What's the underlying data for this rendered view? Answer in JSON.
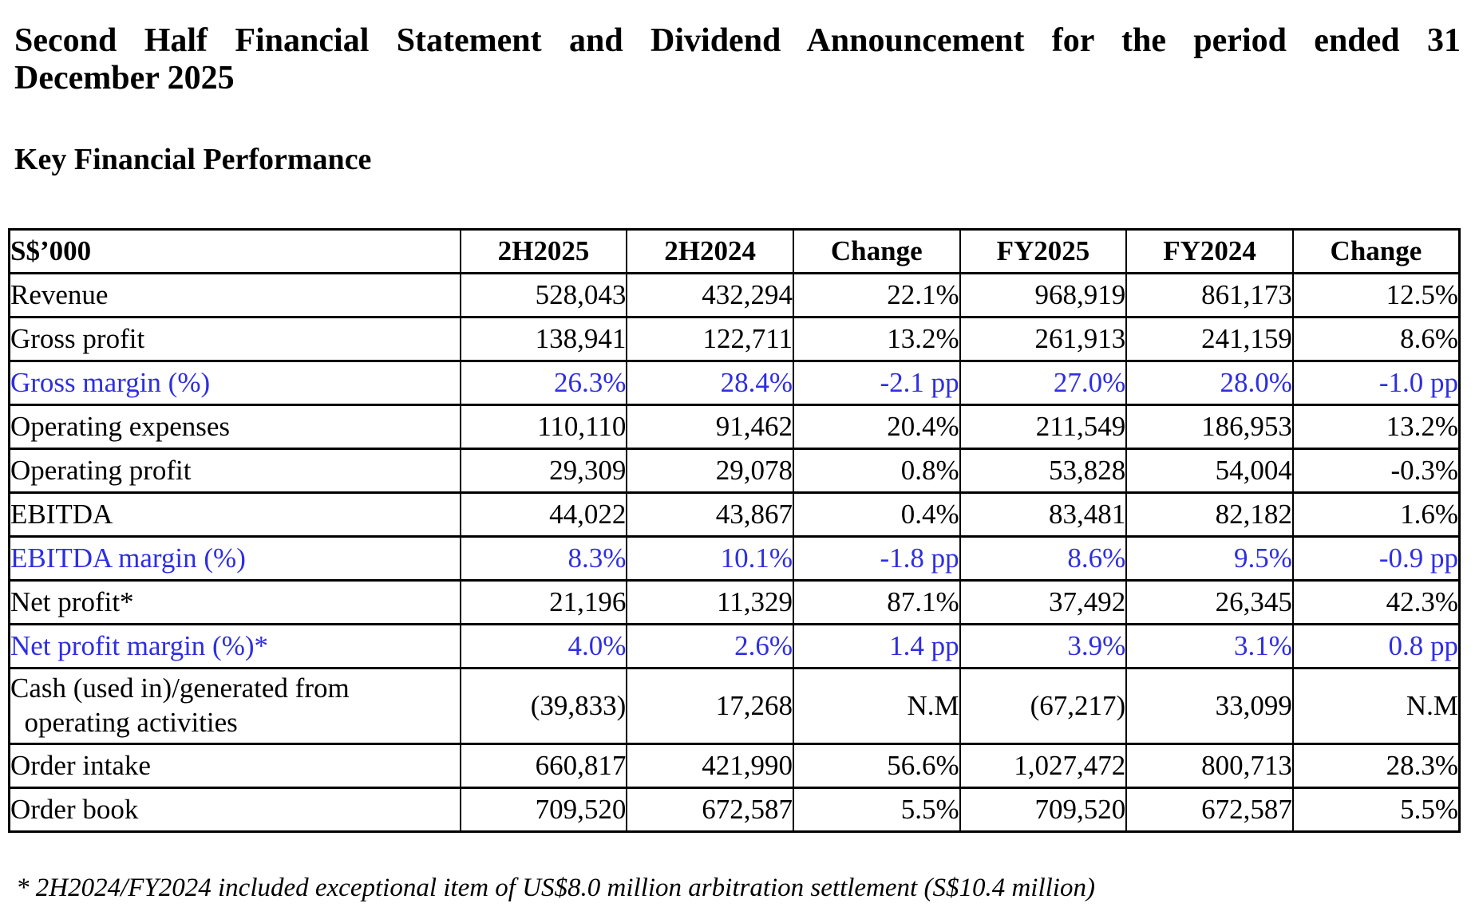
{
  "document": {
    "title_line1": "Second Half Financial Statement and Dividend Announcement for the period ended 31",
    "title_line2": "December 2025",
    "section_heading": "Key Financial Performance",
    "footnote": "* 2H2024/FY2024 included exceptional item of US$8.0 million arbitration settlement (S$10.4 million)"
  },
  "colors": {
    "text": "#000000",
    "highlight_blue": "#2e2ee2",
    "border": "#000000",
    "background": "#ffffff"
  },
  "table": {
    "unit_header": "S$’000",
    "columns": [
      "2H2025",
      "2H2024",
      "Change",
      "FY2025",
      "FY2024",
      "Change"
    ],
    "rows": [
      {
        "label": "Revenue",
        "highlight": false,
        "tall": false,
        "values": [
          "528,043",
          "432,294",
          "22.1%",
          "968,919",
          "861,173",
          "12.5%"
        ]
      },
      {
        "label": "Gross profit",
        "highlight": false,
        "tall": false,
        "values": [
          "138,941",
          "122,711",
          "13.2%",
          "261,913",
          "241,159",
          "8.6%"
        ]
      },
      {
        "label": "Gross margin (%)",
        "highlight": true,
        "tall": false,
        "values": [
          "26.3%",
          "28.4%",
          "-2.1 pp",
          "27.0%",
          "28.0%",
          "-1.0 pp"
        ]
      },
      {
        "label": "Operating expenses",
        "highlight": false,
        "tall": false,
        "values": [
          "110,110",
          "91,462",
          "20.4%",
          "211,549",
          "186,953",
          "13.2%"
        ]
      },
      {
        "label": "Operating profit",
        "highlight": false,
        "tall": false,
        "values": [
          "29,309",
          "29,078",
          "0.8%",
          "53,828",
          "54,004",
          "-0.3%"
        ]
      },
      {
        "label": "EBITDA",
        "highlight": false,
        "tall": false,
        "values": [
          "44,022",
          "43,867",
          "0.4%",
          "83,481",
          "82,182",
          "1.6%"
        ]
      },
      {
        "label": "EBITDA margin (%)",
        "highlight": true,
        "tall": false,
        "values": [
          "8.3%",
          "10.1%",
          "-1.8 pp",
          "8.6%",
          "9.5%",
          "-0.9 pp"
        ]
      },
      {
        "label": "Net profit*",
        "highlight": false,
        "tall": false,
        "values": [
          "21,196",
          "11,329",
          "87.1%",
          "37,492",
          "26,345",
          "42.3%"
        ]
      },
      {
        "label": "Net profit margin (%)*",
        "highlight": true,
        "tall": false,
        "values": [
          "4.0%",
          "2.6%",
          "1.4 pp",
          "3.9%",
          "3.1%",
          "0.8 pp"
        ]
      },
      {
        "label": "Cash (used in)/generated from\n  operating activities",
        "highlight": false,
        "tall": true,
        "values": [
          "(39,833)",
          "17,268",
          "N.M",
          "(67,217)",
          "33,099",
          "N.M"
        ]
      },
      {
        "label": "Order intake",
        "highlight": false,
        "tall": false,
        "values": [
          "660,817",
          "421,990",
          "56.6%",
          "1,027,472",
          "800,713",
          "28.3%"
        ]
      },
      {
        "label": "Order book",
        "highlight": false,
        "tall": false,
        "values": [
          "709,520",
          "672,587",
          "5.5%",
          "709,520",
          "672,587",
          "5.5%"
        ]
      }
    ]
  }
}
